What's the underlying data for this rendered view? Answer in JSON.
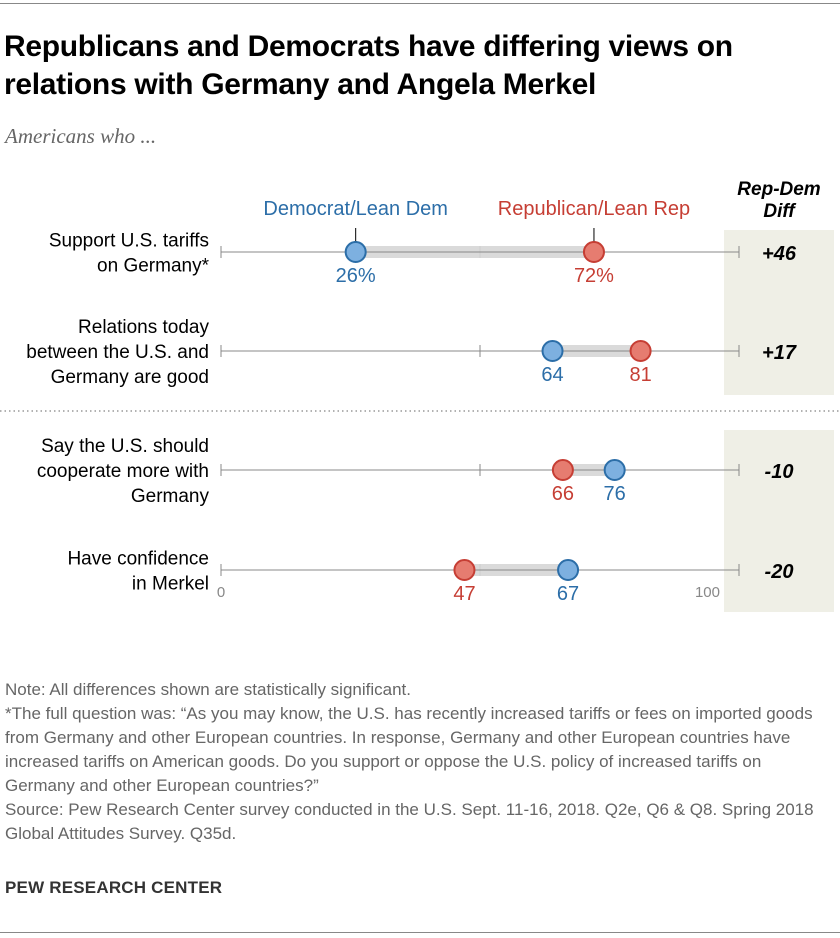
{
  "title": "Republicans and Democrats have differing views on relations with Germany and Angela Merkel",
  "subtitle": "Americans who ...",
  "chart_data": {
    "type": "dot",
    "xlim": [
      0,
      100
    ],
    "tick_labels": [
      "0",
      "100"
    ],
    "diff_header": "Rep-Dem Diff",
    "legend": {
      "dem": "Democrat/Lean Dem",
      "rep": "Republican/Lean Rep"
    },
    "colors": {
      "dem_fill": "#7db0e0",
      "dem_stroke": "#2c6ea8",
      "rep_fill": "#e67c70",
      "rep_stroke": "#c63e34",
      "band": "#d6d6d6",
      "diff_bg": "#efefe6"
    },
    "rows": [
      {
        "label": [
          "Support U.S. tariffs",
          "on Germany*"
        ],
        "dem": 26,
        "rep": 72,
        "dem_label": "26%",
        "rep_label": "72%",
        "diff": "+46"
      },
      {
        "label": [
          "Relations today",
          "between the U.S. and",
          "Germany are good"
        ],
        "dem": 64,
        "rep": 81,
        "dem_label": "64",
        "rep_label": "81",
        "diff": "+17"
      },
      {
        "label": [
          "Say the U.S. should",
          "cooperate more with",
          "Germany"
        ],
        "dem": 76,
        "rep": 66,
        "dem_label": "76",
        "rep_label": "66",
        "diff": "-10"
      },
      {
        "label": [
          "Have confidence",
          "in Merkel"
        ],
        "dem": 67,
        "rep": 47,
        "dem_label": "67",
        "rep_label": "47",
        "diff": "-20"
      }
    ]
  },
  "notes": [
    "Note: All differences shown are statistically significant.",
    "*The full question was: “As you may know, the U.S. has recently increased tariffs or fees on imported goods from Germany and other European countries. In response, Germany and other European countries have increased tariffs on American goods. Do you support or oppose the U.S. policy of increased tariffs on Germany and other European countries?”",
    "Source: Pew Research Center survey conducted in the U.S. Sept. 11-16, 2018. Q2e, Q6 & Q8. Spring 2018 Global Attitudes Survey. Q35d."
  ],
  "brand": "PEW RESEARCH CENTER"
}
